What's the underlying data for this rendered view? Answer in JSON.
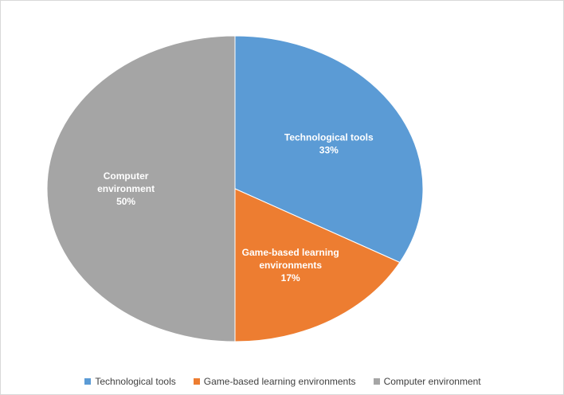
{
  "chart_data": {
    "type": "pie",
    "title": "",
    "slices": [
      {
        "name": "Technological tools",
        "value": 33,
        "value_label": "33%",
        "label_lines": [
          "Technological tools"
        ],
        "color": "#5B9BD5"
      },
      {
        "name": "Game-based learning environments",
        "value": 17,
        "value_label": "17%",
        "label_lines": [
          "Game-based learning",
          "environments"
        ],
        "color": "#ED7D31"
      },
      {
        "name": "Computer environment",
        "value": 50,
        "value_label": "50%",
        "label_lines": [
          "Computer",
          "environment"
        ],
        "color": "#A5A5A5"
      }
    ],
    "start_angle": "12 o'clock, clockwise",
    "legend_position": "bottom"
  }
}
